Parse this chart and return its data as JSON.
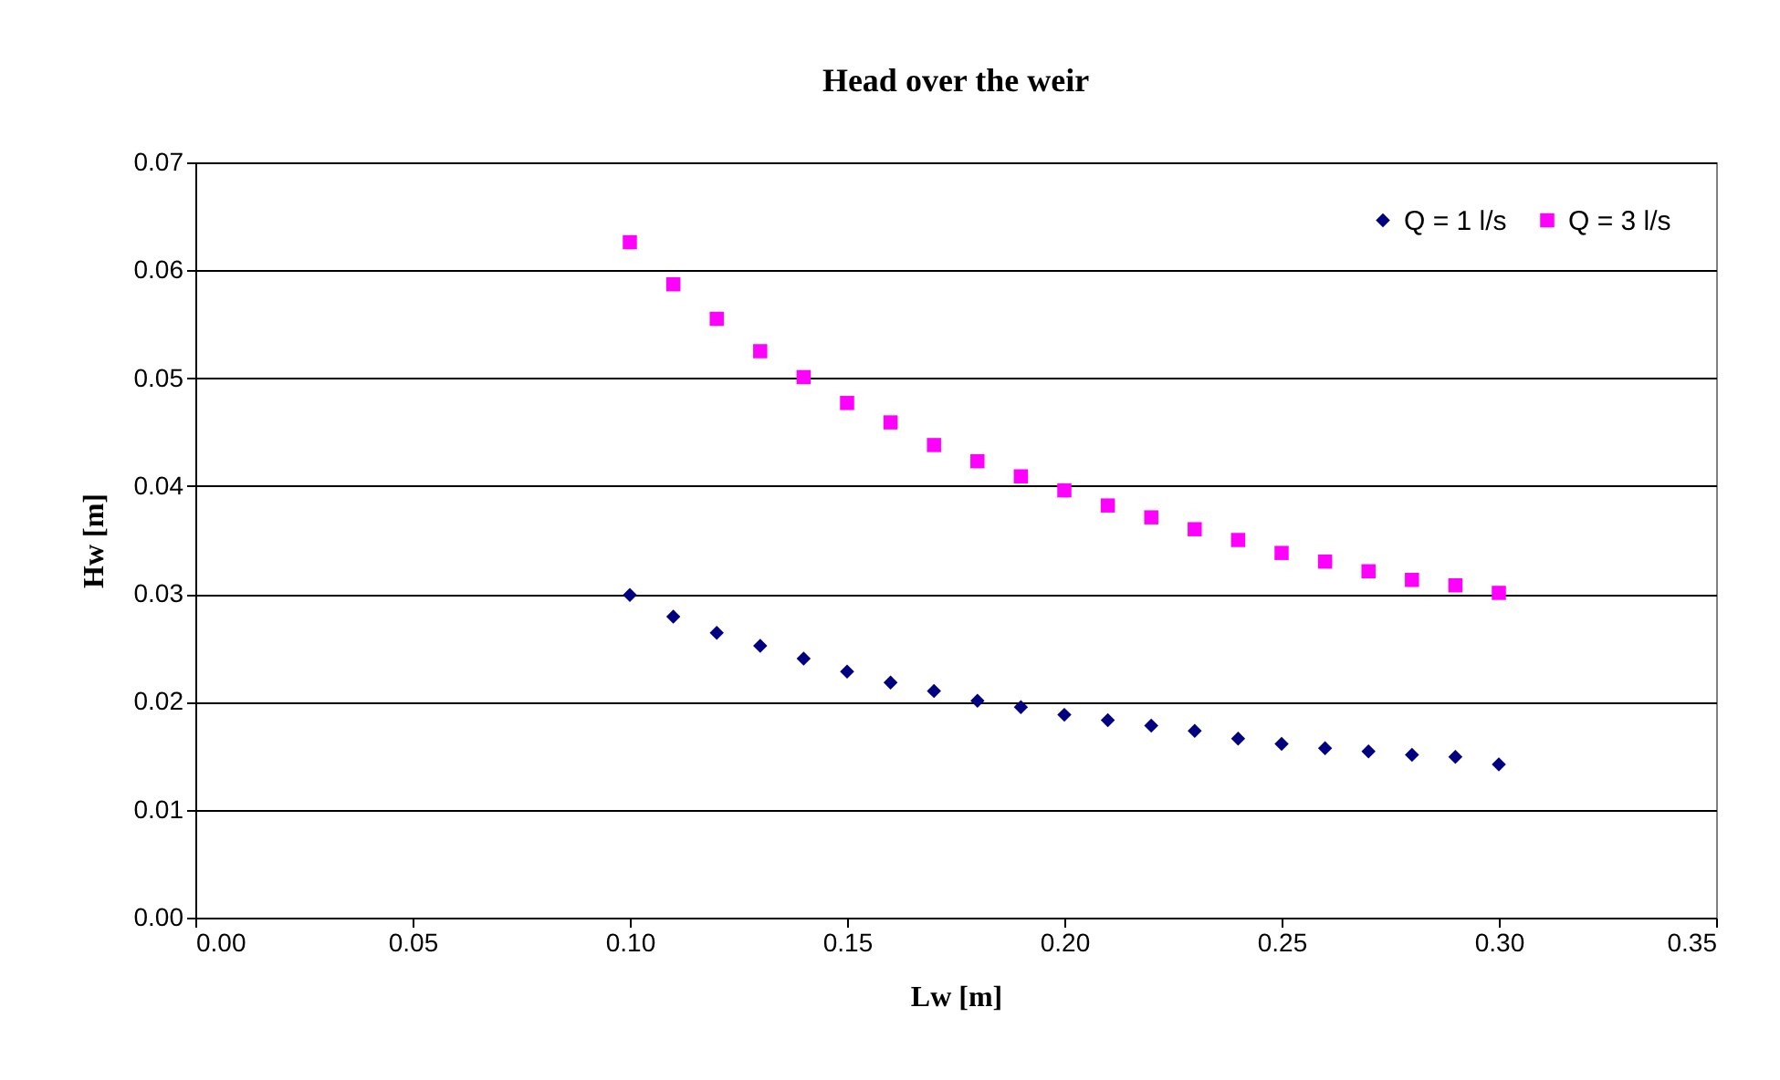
{
  "chart_data": {
    "type": "scatter",
    "title": "Head over the weir",
    "xlabel": "Lw [m]",
    "ylabel": "Hw [m]",
    "x": [
      0.1,
      0.11,
      0.12,
      0.13,
      0.14,
      0.15,
      0.16,
      0.17,
      0.18,
      0.19,
      0.2,
      0.21,
      0.22,
      0.23,
      0.24,
      0.25,
      0.26,
      0.27,
      0.28,
      0.29,
      0.3
    ],
    "series": [
      {
        "name": "Q = 1 l/s",
        "color": "#000080",
        "marker": "diamond",
        "values": [
          0.0299,
          0.0279,
          0.0264,
          0.0252,
          0.024,
          0.0228,
          0.0218,
          0.021,
          0.0201,
          0.0195,
          0.0188,
          0.0183,
          0.0178,
          0.0173,
          0.0166,
          0.0161,
          0.0157,
          0.0154,
          0.0151,
          0.0149,
          0.0142
        ]
      },
      {
        "name": "Q = 3 l/s",
        "color": "#ff00ff",
        "marker": "square",
        "values": [
          0.0626,
          0.0587,
          0.0555,
          0.0525,
          0.0501,
          0.0477,
          0.0459,
          0.0438,
          0.0423,
          0.0409,
          0.0396,
          0.0382,
          0.0371,
          0.036,
          0.035,
          0.0338,
          0.033,
          0.0321,
          0.0313,
          0.0308,
          0.0301
        ]
      }
    ],
    "xlim": [
      0,
      0.35
    ],
    "xticks": [
      {
        "value": 0,
        "label": "0.00"
      },
      {
        "value": 0.05,
        "label": "0.05"
      },
      {
        "value": 0.1,
        "label": "0.10"
      },
      {
        "value": 0.15,
        "label": "0.15"
      },
      {
        "value": 0.2,
        "label": "0.20"
      },
      {
        "value": 0.25,
        "label": "0.25"
      },
      {
        "value": 0.3,
        "label": "0.30"
      },
      {
        "value": 0.35,
        "label": "0.35"
      }
    ],
    "ylim": [
      0,
      0.07
    ],
    "yticks": [
      {
        "value": 0,
        "label": "0.00"
      },
      {
        "value": 0.01,
        "label": "0.01"
      },
      {
        "value": 0.02,
        "label": "0.02"
      },
      {
        "value": 0.03,
        "label": "0.03"
      },
      {
        "value": 0.04,
        "label": "0.04"
      },
      {
        "value": 0.05,
        "label": "0.05"
      },
      {
        "value": 0.06,
        "label": "0.06"
      },
      {
        "value": 0.07,
        "label": "0.07"
      }
    ],
    "grid": "y",
    "legend": "top right"
  }
}
